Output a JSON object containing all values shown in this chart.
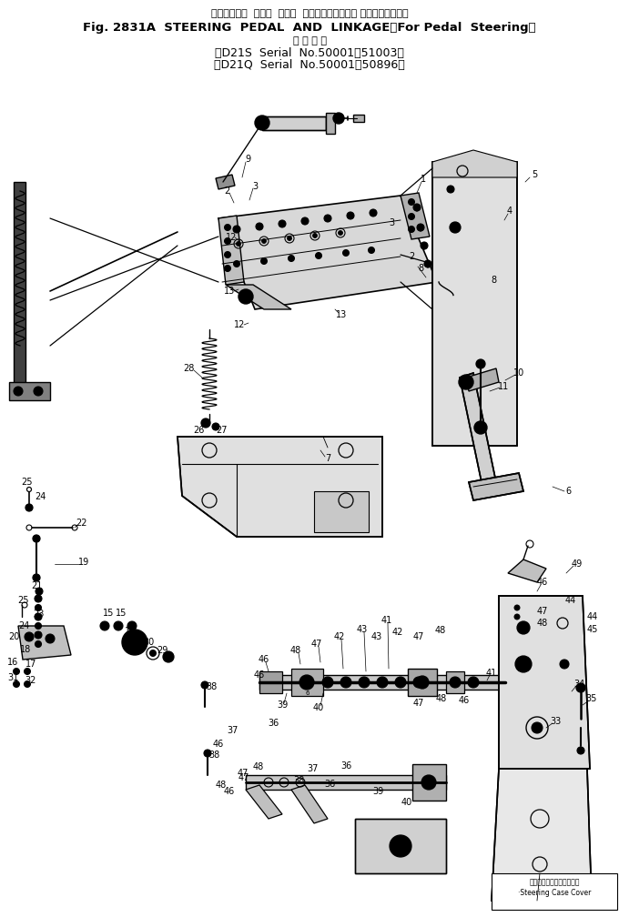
{
  "title_line1_jp": "ステアリング  ペダル  および  リンケージ（ペダル ステアリング用）",
  "title_line1_en": "Fig. 2831A  STEERING  PEDAL  AND  LINKAGE（For Pedal  Steering）",
  "title_line2_jp": "適 用 号 機",
  "title_line3": "（D21S  Serial  No.50001～51003）",
  "title_line4": "（D21Q  Serial  No.50001～50896）",
  "bg_color": "#ffffff",
  "line_color": "#000000",
  "fig_width": 6.8,
  "fig_height": 10.08,
  "dpi": 100
}
